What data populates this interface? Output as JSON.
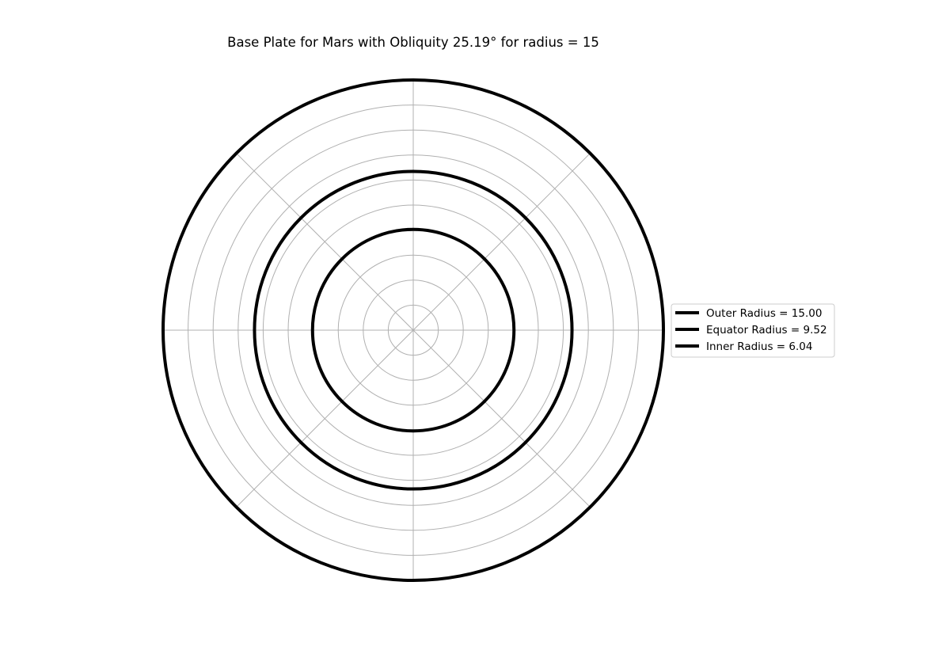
{
  "chart_data": {
    "type": "polar",
    "title": "Base Plate for Mars with Obliquity 25.19° for radius = 15",
    "rmax": 15,
    "radial_gridlines": [
      1.5,
      3,
      4.5,
      6,
      7.5,
      9,
      10.5,
      12,
      13.5,
      15
    ],
    "angular_gridlines_deg": [
      0,
      45,
      90,
      135,
      180,
      225,
      270,
      315
    ],
    "radial_tick_labels_visible": false,
    "angular_tick_labels_visible": false,
    "grid": true,
    "legend_placement": "right-center",
    "series": [
      {
        "name": "Outer Radius = 15.00",
        "radius": 15.0,
        "color": "#000000"
      },
      {
        "name": "Equator Radius = 9.52",
        "radius": 9.52,
        "color": "#000000"
      },
      {
        "name": "Inner Radius = 6.04",
        "radius": 6.04,
        "color": "#000000"
      }
    ]
  },
  "colors": {
    "grid": "#b0b0b0",
    "line": "#000000",
    "legend_border": "#cccccc",
    "background": "#ffffff"
  }
}
